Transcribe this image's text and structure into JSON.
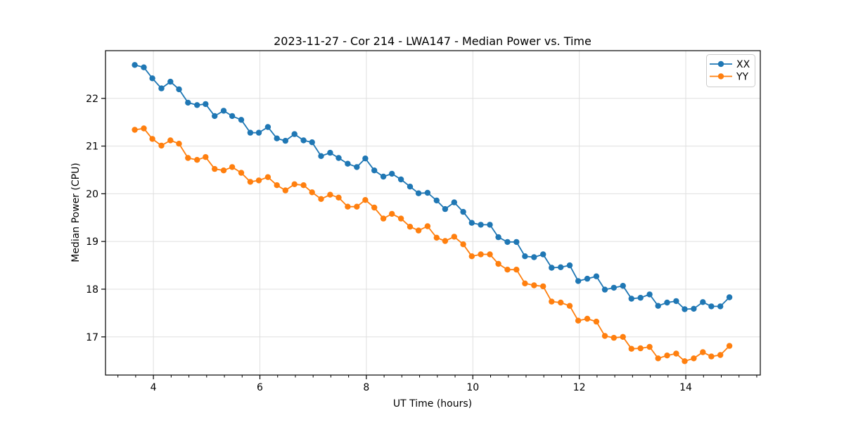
{
  "chart_data": {
    "type": "line",
    "title": "2023-11-27 - Cor 214 - LWA147 - Median Power vs. Time",
    "xlabel": "UT Time (hours)",
    "ylabel": "Median Power (CPU)",
    "xlim": [
      3.1,
      15.4
    ],
    "ylim": [
      16.2,
      23.0
    ],
    "xticks": [
      4,
      6,
      8,
      10,
      12,
      14
    ],
    "yticks": [
      17,
      18,
      19,
      20,
      21,
      22
    ],
    "minor_xtick_step": 0.33333,
    "grid": true,
    "legend_position": "top-right",
    "legend_entries": [
      "XX",
      "YY"
    ],
    "x": [
      3.65,
      3.82,
      3.98,
      4.15,
      4.32,
      4.48,
      4.65,
      4.82,
      4.98,
      5.15,
      5.32,
      5.48,
      5.65,
      5.82,
      5.98,
      6.15,
      6.32,
      6.48,
      6.65,
      6.82,
      6.98,
      7.15,
      7.32,
      7.48,
      7.65,
      7.82,
      7.98,
      8.15,
      8.32,
      8.48,
      8.65,
      8.82,
      8.98,
      9.15,
      9.32,
      9.48,
      9.65,
      9.82,
      9.98,
      10.15,
      10.32,
      10.48,
      10.65,
      10.82,
      10.98,
      11.15,
      11.32,
      11.48,
      11.65,
      11.82,
      11.98,
      12.15,
      12.32,
      12.48,
      12.65,
      12.82,
      12.98,
      13.15,
      13.32,
      13.48,
      13.65,
      13.82,
      13.98,
      14.15,
      14.32,
      14.48,
      14.65,
      14.82
    ],
    "series": [
      {
        "name": "XX",
        "color": "#1f77b4",
        "values": [
          22.7,
          22.65,
          22.42,
          22.21,
          22.35,
          22.19,
          21.91,
          21.86,
          21.88,
          21.63,
          21.74,
          21.63,
          21.55,
          21.28,
          21.28,
          21.4,
          21.16,
          21.11,
          21.25,
          21.12,
          21.08,
          20.79,
          20.86,
          20.75,
          20.63,
          20.56,
          20.74,
          20.49,
          20.36,
          20.42,
          20.3,
          20.15,
          20.01,
          20.02,
          19.86,
          19.68,
          19.82,
          19.62,
          19.39,
          19.35,
          19.35,
          19.09,
          18.99,
          18.99,
          18.69,
          18.67,
          18.73,
          18.45,
          18.46,
          18.5,
          18.17,
          18.22,
          18.27,
          17.99,
          18.03,
          18.07,
          17.8,
          17.82,
          17.89,
          17.65,
          17.72,
          17.75,
          17.58,
          17.59,
          17.73,
          17.64,
          17.64,
          17.83
        ]
      },
      {
        "name": "YY",
        "color": "#ff7f0e",
        "values": [
          21.34,
          21.37,
          21.15,
          21.01,
          21.12,
          21.05,
          20.75,
          20.71,
          20.77,
          20.52,
          20.49,
          20.56,
          20.44,
          20.25,
          20.28,
          20.35,
          20.18,
          20.07,
          20.2,
          20.18,
          20.03,
          19.89,
          19.98,
          19.92,
          19.73,
          19.73,
          19.87,
          19.71,
          19.48,
          19.58,
          19.48,
          19.31,
          19.23,
          19.32,
          19.08,
          19.01,
          19.1,
          18.94,
          18.69,
          18.73,
          18.73,
          18.53,
          18.41,
          18.41,
          18.12,
          18.08,
          18.06,
          17.74,
          17.72,
          17.65,
          17.34,
          17.38,
          17.32,
          17.02,
          16.98,
          17.0,
          16.75,
          16.76,
          16.79,
          16.55,
          16.61,
          16.65,
          16.49,
          16.55,
          16.68,
          16.59,
          16.62,
          16.81
        ]
      }
    ],
    "style": {
      "grid_color": "#dfdfdf",
      "spine_color": "#000000",
      "legend_border_color": "#cccccc",
      "background": "#ffffff"
    }
  }
}
